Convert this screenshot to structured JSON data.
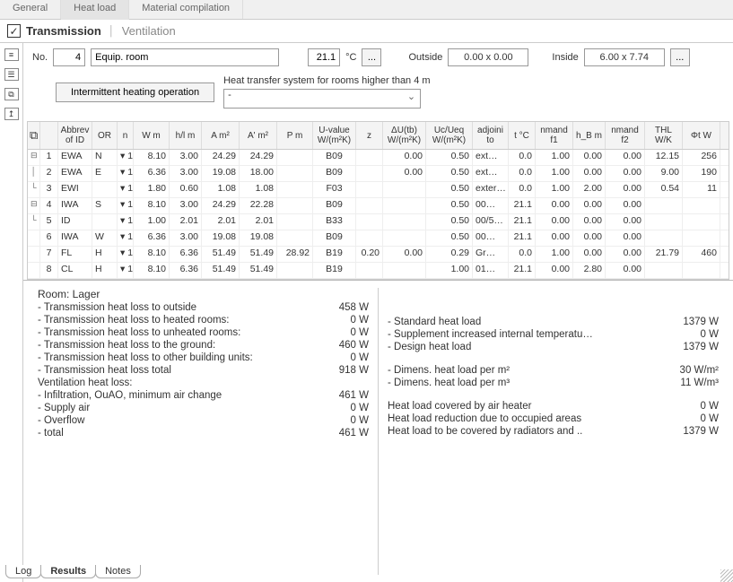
{
  "topTabs": {
    "general": "General",
    "heatload": "Heat load",
    "material": "Material compilation"
  },
  "subHeader": {
    "checked": "✓",
    "bold": "Transmission",
    "light": "Ventilation"
  },
  "line1": {
    "noLabel": "No.",
    "noValue": "4",
    "nameValue": "Equip. room",
    "tempValue": "21.1",
    "tempUnit": "°C",
    "more": "...",
    "outsideLabel": "Outside",
    "outsideDim": "0.00 x 0.00",
    "insideLabel": "Inside",
    "insideDim": "6.00 x 7.74",
    "more2": "..."
  },
  "line2": {
    "btn": "Intermittent heating operation",
    "caption": "Heat transfer system for rooms higher than 4 m",
    "dropdown": "-"
  },
  "grid": {
    "headers": [
      "",
      "",
      "Abbrev of ID",
      "OR",
      "n",
      "W m",
      "h/l m",
      "A m²",
      "A' m²",
      "P m",
      "U-value W/(m²K)",
      "z",
      "ΔU(tb) W/(m²K)",
      "Uc/Ueq W/(m²K)",
      "adjoini to",
      "t °C",
      "nmand f1",
      "h_B m",
      "nmand f2",
      "THL W/K",
      "Φt W",
      ""
    ],
    "rows": [
      {
        "tree": "⊟",
        "n": "1",
        "id": "EWA",
        "or": "N",
        "dd": "▾",
        "cnt": "1",
        "w": "8.10",
        "h": "3.00",
        "a": "24.29",
        "ap": "24.29",
        "p": "",
        "u": "B09",
        "z": "",
        "du": "0.00",
        "uc": "0.50",
        "adj": "ext…",
        "t": "0.0",
        "f1": "1.00",
        "hb": "0.00",
        "f2": "0.00",
        "thl": "12.15",
        "phi": "256"
      },
      {
        "tree": "│",
        "n": "2",
        "id": "EWA",
        "or": "E",
        "dd": "▾",
        "cnt": "1",
        "w": "6.36",
        "h": "3.00",
        "a": "19.08",
        "ap": "18.00",
        "p": "",
        "u": "B09",
        "z": "",
        "du": "0.00",
        "uc": "0.50",
        "adj": "ext…",
        "t": "0.0",
        "f1": "1.00",
        "hb": "0.00",
        "f2": "0.00",
        "thl": "9.00",
        "phi": "190"
      },
      {
        "tree": "└",
        "n": "3",
        "id": "EWI",
        "or": "",
        "dd": "▾",
        "cnt": "1",
        "w": "1.80",
        "h": "0.60",
        "a": "1.08",
        "ap": "1.08",
        "p": "",
        "u": "F03",
        "z": "",
        "du": "",
        "uc": "0.50",
        "adj": "exter…",
        "t": "0.0",
        "f1": "1.00",
        "hb": "2.00",
        "f2": "0.00",
        "thl": "0.54",
        "phi": "11"
      },
      {
        "tree": "⊟",
        "n": "4",
        "id": "IWA",
        "or": "S",
        "dd": "▾",
        "cnt": "1",
        "w": "8.10",
        "h": "3.00",
        "a": "24.29",
        "ap": "22.28",
        "p": "",
        "u": "B09",
        "z": "",
        "du": "",
        "uc": "0.50",
        "adj": "00…",
        "t": "21.1",
        "f1": "0.00",
        "hb": "0.00",
        "f2": "0.00",
        "thl": "",
        "phi": ""
      },
      {
        "tree": "└",
        "n": "5",
        "id": "ID",
        "or": "",
        "dd": "▾",
        "cnt": "1",
        "w": "1.00",
        "h": "2.01",
        "a": "2.01",
        "ap": "2.01",
        "p": "",
        "u": "B33",
        "z": "",
        "du": "",
        "uc": "0.50",
        "adj": "00/5…",
        "t": "21.1",
        "f1": "0.00",
        "hb": "0.00",
        "f2": "0.00",
        "thl": "",
        "phi": ""
      },
      {
        "tree": "",
        "n": "6",
        "id": "IWA",
        "or": "W",
        "dd": "▾",
        "cnt": "1",
        "w": "6.36",
        "h": "3.00",
        "a": "19.08",
        "ap": "19.08",
        "p": "",
        "u": "B09",
        "z": "",
        "du": "",
        "uc": "0.50",
        "adj": "00…",
        "t": "21.1",
        "f1": "0.00",
        "hb": "0.00",
        "f2": "0.00",
        "thl": "",
        "phi": ""
      },
      {
        "tree": "",
        "n": "7",
        "id": "FL",
        "or": "H",
        "dd": "▾",
        "cnt": "1",
        "w": "8.10",
        "h": "6.36",
        "a": "51.49",
        "ap": "51.49",
        "p": "28.92",
        "u": "B19",
        "z": "0.20",
        "du": "0.00",
        "uc": "0.29",
        "adj": "Gr…",
        "t": "0.0",
        "f1": "1.00",
        "hb": "0.00",
        "f2": "0.00",
        "thl": "21.79",
        "phi": "460"
      },
      {
        "tree": "",
        "n": "8",
        "id": "CL",
        "or": "H",
        "dd": "▾",
        "cnt": "1",
        "w": "8.10",
        "h": "6.36",
        "a": "51.49",
        "ap": "51.49",
        "p": "",
        "u": "B19",
        "z": "",
        "du": "",
        "uc": "1.00",
        "adj": "01…",
        "t": "21.1",
        "f1": "0.00",
        "hb": "2.80",
        "f2": "0.00",
        "thl": "",
        "phi": ""
      }
    ]
  },
  "results": {
    "roomTitle": "Room: Lager",
    "left": [
      {
        "l": "- Transmission heat loss to outside",
        "v": "458 W"
      },
      {
        "l": "- Transmission heat loss to heated rooms:",
        "v": "0 W"
      },
      {
        "l": "- Transmission heat loss to unheated rooms:",
        "v": "0 W"
      },
      {
        "l": "- Transmission heat loss to the ground:",
        "v": "460 W"
      },
      {
        "l": "- Transmission heat loss to other building units:",
        "v": "0 W"
      },
      {
        "l": "- Transmission heat loss total",
        "v": "918 W"
      }
    ],
    "ventTitle": "Ventilation heat loss:",
    "vent": [
      {
        "l": "- Infiltration, OuAO, minimum air change",
        "v": "461 W"
      },
      {
        "l": "- Supply air",
        "v": "0 W"
      },
      {
        "l": "- Overflow",
        "v": "0 W"
      },
      {
        "l": "- total",
        "v": "461 W"
      }
    ],
    "right1": [
      {
        "l": "- Standard heat load",
        "v": "1379 W"
      },
      {
        "l": "- Supplement increased internal temperatu…",
        "v": "0 W"
      },
      {
        "l": "- Design heat load",
        "v": "1379 W"
      }
    ],
    "right2": [
      {
        "l": "- Dimens. heat load per m²",
        "v": "30 W/m²"
      },
      {
        "l": "- Dimens. heat load per m³",
        "v": "11 W/m³"
      }
    ],
    "right3": [
      {
        "l": "Heat load covered by air heater",
        "v": "0 W"
      },
      {
        "l": "Heat load reduction due to occupied areas",
        "v": "0 W"
      },
      {
        "l": "Heat load to be covered by radiators and ..",
        "v": "1379 W"
      }
    ]
  },
  "bottomTabs": {
    "log": "Log",
    "results": "Results",
    "notes": "Notes"
  },
  "colors": {
    "accent": "#5a9de0",
    "bg": "#ffffff",
    "headerBg": "#f0f0f0"
  }
}
